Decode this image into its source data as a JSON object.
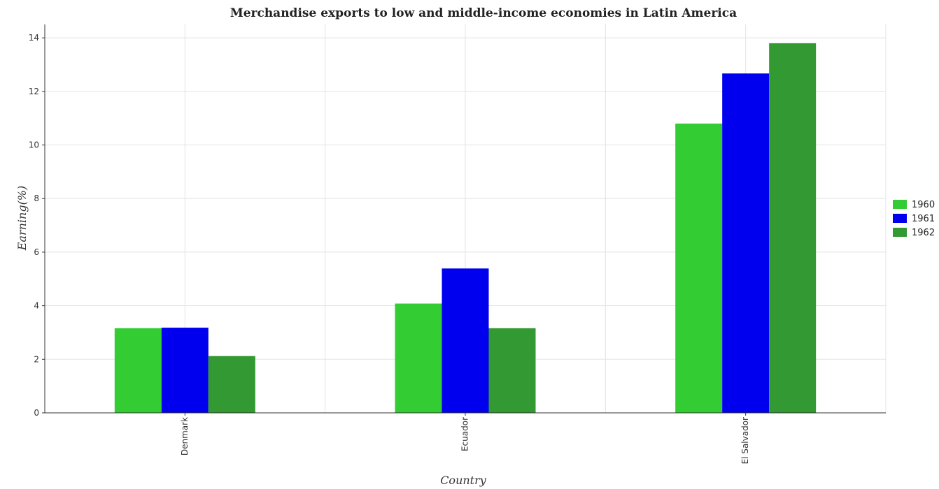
{
  "chart_data": {
    "type": "bar",
    "title": "Merchandise exports to low and middle-income economies in Latin America",
    "xlabel": "Country",
    "ylabel": "Earning(%)",
    "categories": [
      "Denmark",
      "Ecuador",
      "El Salvador"
    ],
    "series": [
      {
        "name": "1960",
        "color": "#33cc33",
        "values": [
          3.16,
          4.08,
          10.8
        ]
      },
      {
        "name": "1961",
        "color": "#0000ee",
        "values": [
          3.18,
          5.39,
          12.67
        ]
      },
      {
        "name": "1962",
        "color": "#339933",
        "values": [
          2.12,
          3.16,
          13.8
        ]
      }
    ],
    "ylim": [
      0,
      14.5
    ],
    "yticks": [
      "0",
      "2",
      "4",
      "6",
      "8",
      "10",
      "12",
      "14"
    ],
    "grid": true,
    "legend_position": "right"
  }
}
